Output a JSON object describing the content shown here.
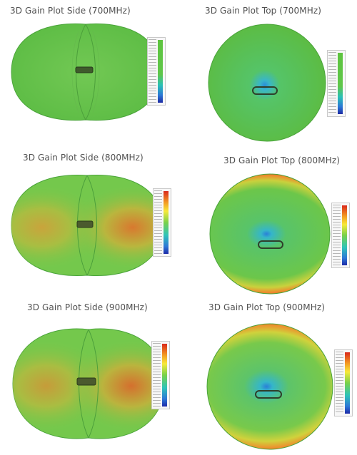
{
  "figure": {
    "panels": [
      {
        "title": "3D Gain Plot Side (700MHz)"
      },
      {
        "title": "3D Gain Plot Top (700MHz)"
      },
      {
        "title": "3D Gain Plot Side (800MHz)"
      },
      {
        "title": "3D Gain Plot Top (800MHz)"
      },
      {
        "title": "3D Gain Plot Side (900MHz)"
      },
      {
        "title": "3D Gain Plot Top (900MHz)"
      }
    ]
  },
  "colors": {
    "low_gain": "#1d2aa8",
    "mid_gain": "#5ec43f",
    "high_gain": "#d9281b"
  }
}
